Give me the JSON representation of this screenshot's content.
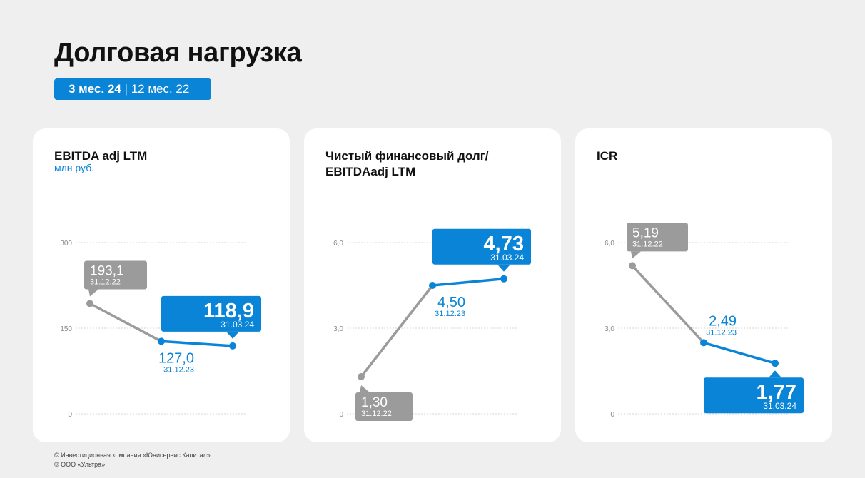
{
  "header": {
    "title": "Долговая нагрузка",
    "period_active": "3 мес. 24",
    "period_separator": "|",
    "period_inactive": "12 мес. 22"
  },
  "cards": [
    {
      "title": "EBITDA adj LTM",
      "subtitle": "млн руб."
    },
    {
      "title": "Чистый финансовый долг/ EBITDAadj LTM",
      "subtitle": ""
    },
    {
      "title": "ICR",
      "subtitle": ""
    }
  ],
  "colors": {
    "accent": "#0a84d6",
    "muted": "#9b9b9b"
  },
  "footer": {
    "line1": "© Инвестиционная компания «Юнисервис Капитал»",
    "line2": "© ООО «Ультра»"
  },
  "chart_data": [
    {
      "type": "line",
      "ylim": [
        0,
        300
      ],
      "yticks": [
        "0",
        "150",
        "300"
      ],
      "x": [
        "31.12.22",
        "31.12.23",
        "31.03.24"
      ],
      "values": [
        193.1,
        127.0,
        118.9
      ],
      "labels": [
        {
          "value": "193,1",
          "date": "31.12.22"
        },
        {
          "value": "127,0",
          "date": "31.12.23"
        },
        {
          "value": "118,9",
          "date": "31.03.24"
        }
      ]
    },
    {
      "type": "line",
      "ylim": [
        0,
        6
      ],
      "yticks": [
        "0",
        "3,0",
        "6,0"
      ],
      "x": [
        "31.12.22",
        "31.12.23",
        "31.03.24"
      ],
      "values": [
        1.3,
        4.5,
        4.73
      ],
      "labels": [
        {
          "value": "1,30",
          "date": "31.12.22"
        },
        {
          "value": "4,50",
          "date": "31.12.23"
        },
        {
          "value": "4,73",
          "date": "31.03.24"
        }
      ]
    },
    {
      "type": "line",
      "ylim": [
        0,
        6
      ],
      "yticks": [
        "0",
        "3,0",
        "6,0"
      ],
      "x": [
        "31.12.22",
        "31.12.23",
        "31.03.24"
      ],
      "values": [
        5.19,
        2.49,
        1.77
      ],
      "labels": [
        {
          "value": "5,19",
          "date": "31.12.22"
        },
        {
          "value": "2,49",
          "date": "31.12.23"
        },
        {
          "value": "1,77",
          "date": "31.03.24"
        }
      ]
    }
  ]
}
